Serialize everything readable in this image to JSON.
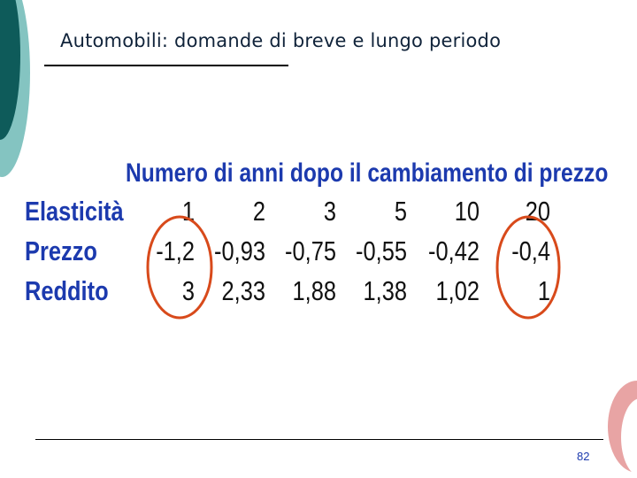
{
  "slide": {
    "title": "Automobili: domande di breve e lungo periodo",
    "page_number": "82"
  },
  "table": {
    "heading": "Numero di anni dopo il cambiamento di prezzo",
    "rows": [
      {
        "label": "Elasticità",
        "values": [
          "1",
          "2",
          "3",
          "5",
          "10",
          "20"
        ]
      },
      {
        "label": "Prezzo",
        "values": [
          "-1,2",
          "-0,93",
          "-0,75",
          "-0,55",
          "-0,42",
          "-0,4"
        ]
      },
      {
        "label": "Reddito",
        "values": [
          "3",
          "2,33",
          "1,88",
          "1,38",
          "1,02",
          "1"
        ]
      }
    ],
    "highlighted_columns": [
      0,
      5
    ]
  },
  "colors": {
    "accent_blue": "#1c3aae",
    "highlight_circle": "#d84a1b",
    "deco_dark_teal": "#0e5b5a",
    "deco_light_teal": "#84c4c1",
    "deco_pink": "#e8a4a4"
  }
}
